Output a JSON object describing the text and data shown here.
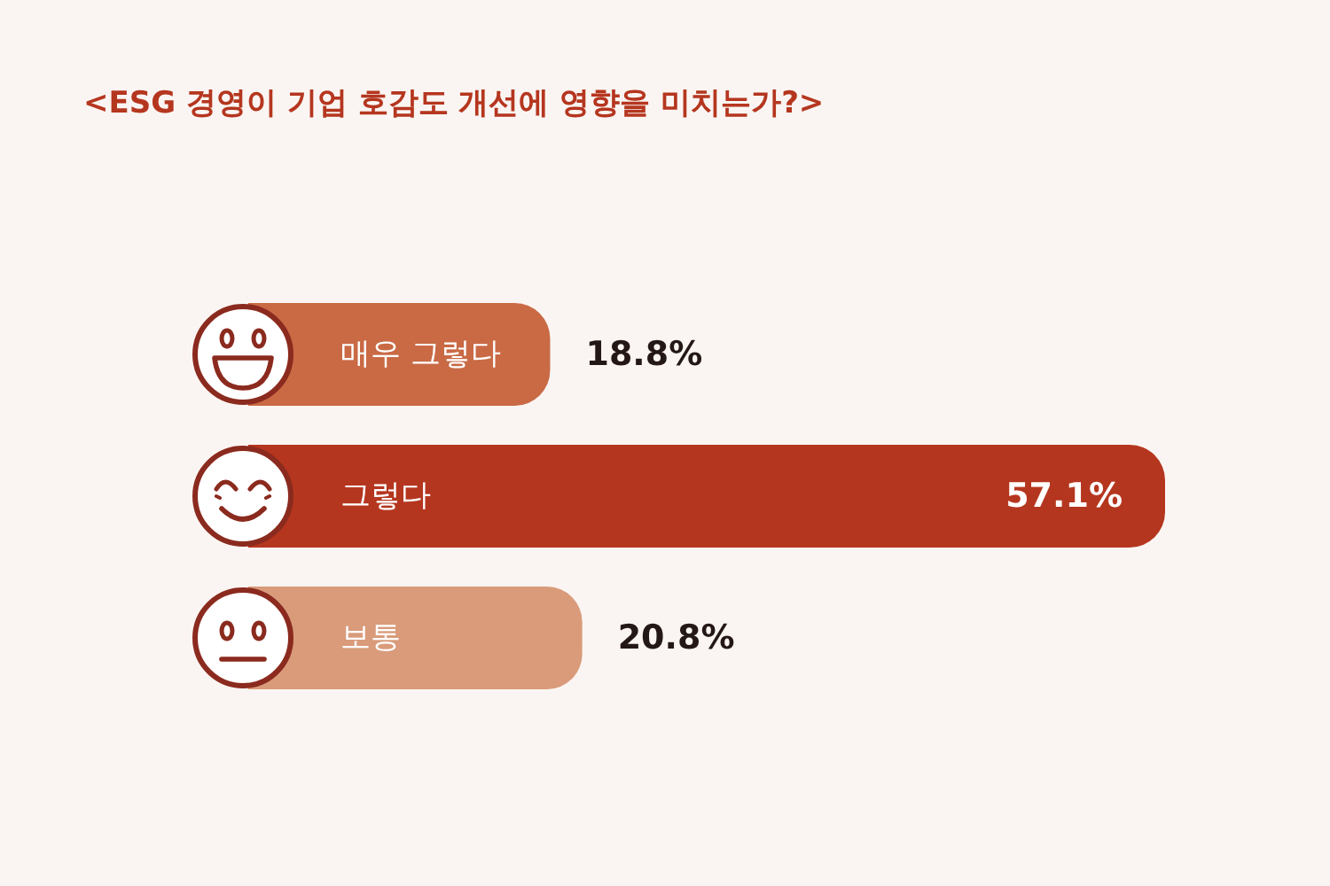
{
  "chart_data": {
    "type": "bar",
    "orientation": "horizontal",
    "title": "<ESG 경영이 기업 호감도 개선에 영향을 미치는가?>",
    "categories": [
      "매우 그렇다",
      "그렇다",
      "보통"
    ],
    "values": [
      18.8,
      57.1,
      20.8
    ],
    "colors": [
      "#c96a45",
      "#b5361f",
      "#d99b7a"
    ],
    "value_labels": [
      "18.8%",
      "57.1%",
      "20.8%"
    ]
  }
}
